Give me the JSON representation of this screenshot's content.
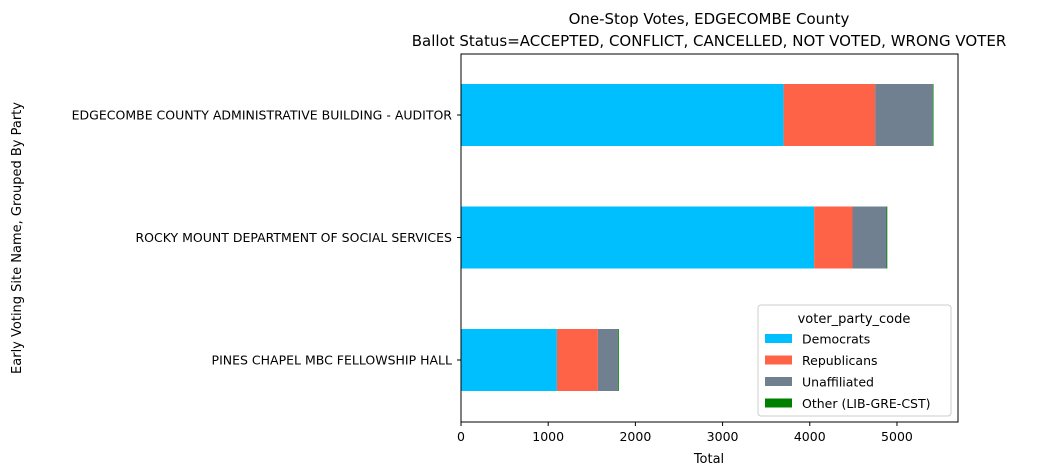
{
  "chart_data": {
    "type": "bar",
    "orientation": "horizontal",
    "stacked": true,
    "title": "One-Stop Votes, EDGECOMBE County",
    "subtitle": "Ballot Status=ACCEPTED, CONFLICT, CANCELLED, NOT VOTED, WRONG VOTER",
    "xlabel": "Total",
    "ylabel": "Early Voting Site Name, Grouped By Party",
    "xlim": [
      0,
      5700
    ],
    "xticks": [
      0,
      1000,
      2000,
      3000,
      4000,
      5000
    ],
    "grid": false,
    "legend_title": "voter_party_code",
    "legend_position": "lower-right",
    "categories": [
      "EDGECOMBE COUNTY ADMINISTRATIVE BUILDING - AUDITOR",
      "ROCKY MOUNT DEPARTMENT OF SOCIAL SERVICES",
      "PINES CHAPEL MBC FELLOWSHIP HALL"
    ],
    "series": [
      {
        "name": "Democrats",
        "color": "#00bfff",
        "values": [
          3700,
          4050,
          1100
        ]
      },
      {
        "name": "Republicans",
        "color": "#ff6347",
        "values": [
          1050,
          440,
          470
        ]
      },
      {
        "name": "Unaffiliated",
        "color": "#708090",
        "values": [
          660,
          390,
          230
        ]
      },
      {
        "name": "Other (LIB-GRE-CST)",
        "color": "#008000",
        "values": [
          5,
          3,
          10
        ]
      }
    ]
  }
}
